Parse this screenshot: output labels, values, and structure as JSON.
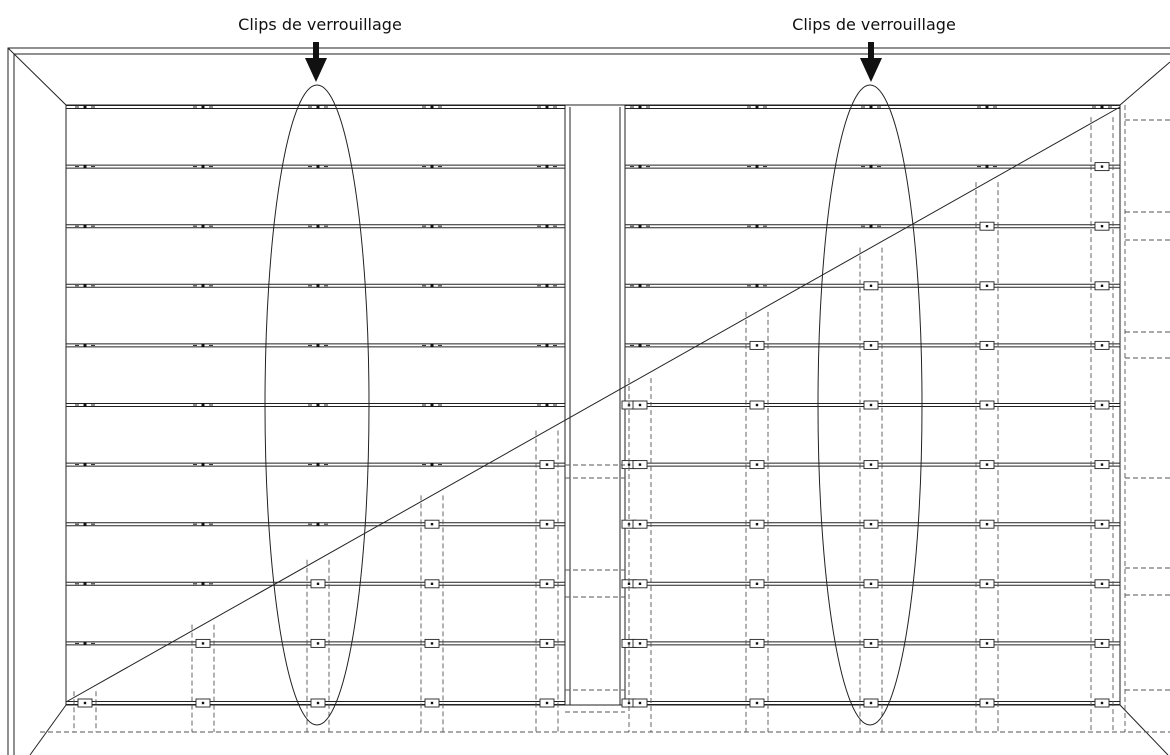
{
  "annotations": [
    {
      "label": "Clips de verrouillage"
    },
    {
      "label": "Clips de verrouillage"
    }
  ]
}
